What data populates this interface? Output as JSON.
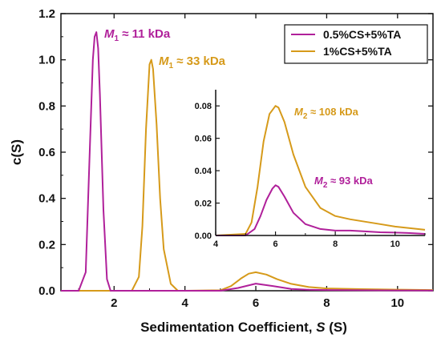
{
  "chart_data": [
    {
      "type": "line",
      "xlabel": "Sedimentation Coefficient, S (S)",
      "ylabel": "c(S)",
      "xlim": [
        0.5,
        11
      ],
      "ylim": [
        0,
        1.2
      ],
      "xticks": [
        "2",
        "4",
        "6",
        "8",
        "10"
      ],
      "yticks": [
        "0.0",
        "0.2",
        "0.4",
        "0.6",
        "0.8",
        "1.0",
        "1.2"
      ],
      "legend": "top-right",
      "grid": false,
      "colors": {
        "0.5%CS+5%TA": "#b0209a",
        "1%CS+5%TA": "#d69a1a"
      },
      "series": [
        {
          "name": "0.5%CS+5%TA",
          "x": [
            0.5,
            1.0,
            1.2,
            1.3,
            1.4,
            1.45,
            1.5,
            1.55,
            1.6,
            1.7,
            1.8,
            1.9,
            2.0,
            4.0,
            5.0,
            5.5,
            6.0,
            6.5,
            7.0,
            7.5,
            8.0,
            9.0,
            10.0,
            11.0
          ],
          "y": [
            0.0,
            0.0,
            0.08,
            0.55,
            1.0,
            1.1,
            1.12,
            1.05,
            0.85,
            0.35,
            0.05,
            0.0,
            0.0,
            0.0,
            0.0,
            0.012,
            0.031,
            0.02,
            0.008,
            0.004,
            0.003,
            0.002,
            0.0015,
            0.001
          ]
        },
        {
          "name": "1%CS+5%TA",
          "x": [
            0.5,
            2.0,
            2.5,
            2.7,
            2.8,
            2.9,
            3.0,
            3.05,
            3.1,
            3.2,
            3.3,
            3.4,
            3.6,
            3.8,
            4.0,
            5.0,
            5.3,
            5.6,
            5.8,
            6.0,
            6.3,
            6.6,
            7.0,
            7.5,
            8.0,
            9.0,
            10.0,
            11.0
          ],
          "y": [
            0.0,
            0.0,
            0.0,
            0.06,
            0.28,
            0.7,
            0.98,
            1.0,
            0.96,
            0.72,
            0.4,
            0.18,
            0.03,
            0.0,
            0.0,
            0.002,
            0.02,
            0.055,
            0.074,
            0.08,
            0.07,
            0.05,
            0.03,
            0.016,
            0.01,
            0.007,
            0.005,
            0.003
          ]
        }
      ],
      "annotations": [
        {
          "sym": "M",
          "sub": "1",
          "rest": " ≈ 11 kDa",
          "color": "#b0209a"
        },
        {
          "sym": "M",
          "sub": "1",
          "rest": " ≈ 33 kDa",
          "color": "#d69a1a"
        }
      ]
    },
    {
      "type": "line",
      "role": "inset",
      "xlim": [
        4,
        11
      ],
      "ylim": [
        0,
        0.09
      ],
      "xticks": [
        "4",
        "6",
        "8",
        "10"
      ],
      "yticks": [
        "0.00",
        "0.02",
        "0.04",
        "0.06",
        "0.08"
      ],
      "series": [
        {
          "name": "0.5%CS+5%TA",
          "x": [
            4.0,
            5.0,
            5.3,
            5.5,
            5.7,
            5.9,
            6.0,
            6.1,
            6.3,
            6.6,
            7.0,
            7.5,
            8.0,
            8.5,
            9.0,
            9.5,
            10.0,
            10.5,
            11.0
          ],
          "y": [
            0.0,
            0.0,
            0.004,
            0.012,
            0.022,
            0.029,
            0.031,
            0.03,
            0.024,
            0.014,
            0.007,
            0.004,
            0.003,
            0.003,
            0.0025,
            0.002,
            0.0018,
            0.0015,
            0.001
          ]
        },
        {
          "name": "1%CS+5%TA",
          "x": [
            4.0,
            5.0,
            5.2,
            5.4,
            5.6,
            5.8,
            6.0,
            6.1,
            6.3,
            6.6,
            7.0,
            7.5,
            8.0,
            8.5,
            9.0,
            9.5,
            10.0,
            10.5,
            11.0
          ],
          "y": [
            0.0,
            0.001,
            0.008,
            0.03,
            0.058,
            0.075,
            0.08,
            0.079,
            0.07,
            0.05,
            0.03,
            0.017,
            0.012,
            0.01,
            0.0085,
            0.007,
            0.0055,
            0.0045,
            0.0035
          ]
        }
      ],
      "annotations": [
        {
          "sym": "M",
          "sub": "2",
          "rest": " ≈ 108 kDa",
          "color": "#d69a1a"
        },
        {
          "sym": "M",
          "sub": "2",
          "rest": " ≈ 93 kDa",
          "color": "#b0209a"
        }
      ]
    }
  ]
}
